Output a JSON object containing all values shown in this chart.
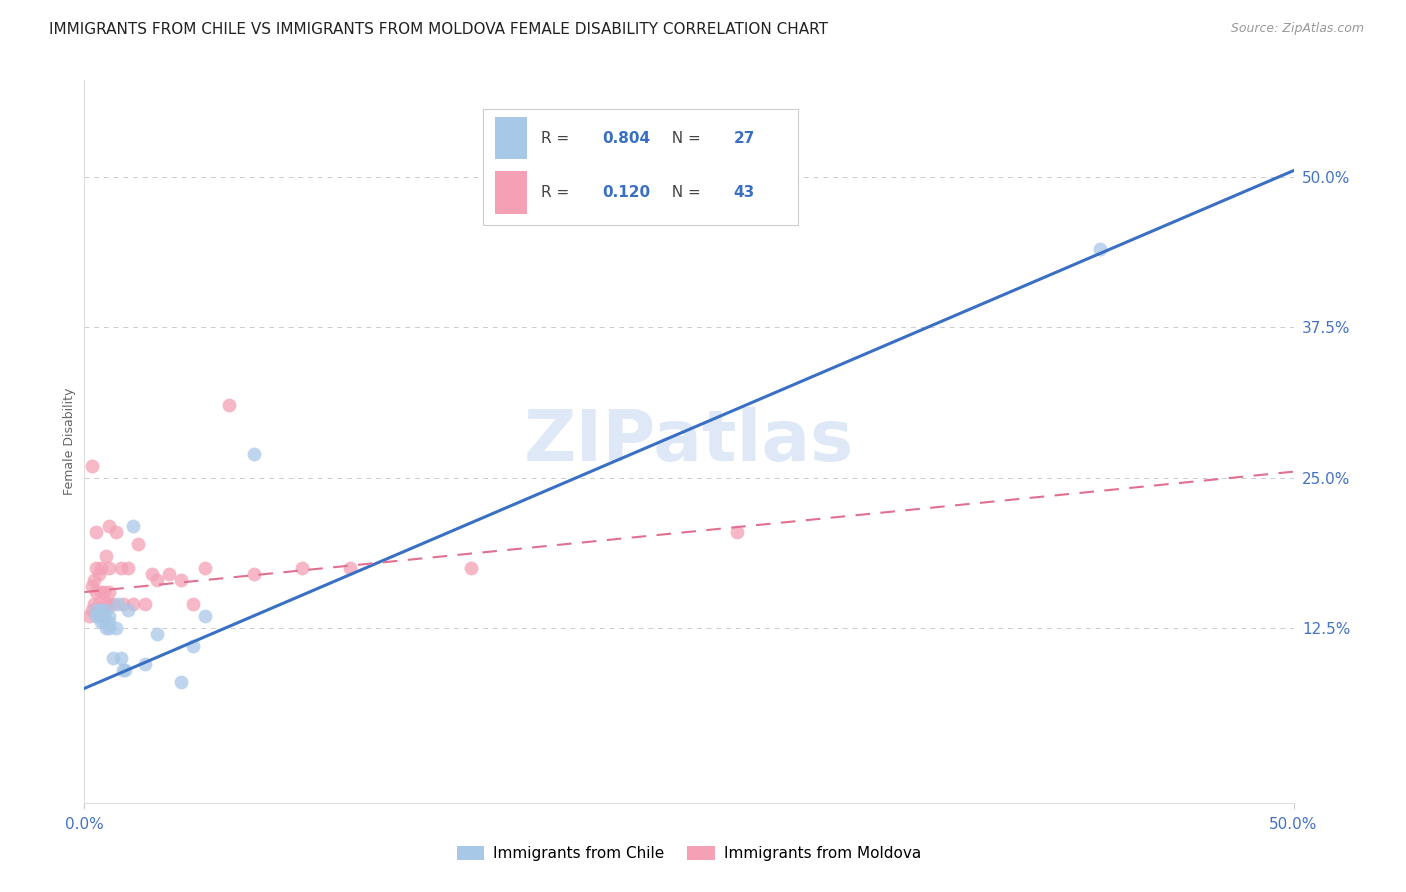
{
  "title": "IMMIGRANTS FROM CHILE VS IMMIGRANTS FROM MOLDOVA FEMALE DISABILITY CORRELATION CHART",
  "source": "Source: ZipAtlas.com",
  "ylabel": "Female Disability",
  "xlim": [
    0.0,
    0.5
  ],
  "ylim": [
    -0.02,
    0.58
  ],
  "yticks": [
    0.0,
    0.125,
    0.25,
    0.375,
    0.5
  ],
  "chile_color": "#a8c8e8",
  "moldova_color": "#f4a0b5",
  "chile_line_color": "#3a70c4",
  "moldova_line_color": "#e07090",
  "right_tick_color": "#4472c4",
  "bottom_tick_color": "#4472c4",
  "grid_color": "#cccccc",
  "background_color": "#ffffff",
  "watermark": "ZIPatlas",
  "watermark_color": "#c8daf0",
  "chile_R": "0.804",
  "chile_N": "27",
  "moldova_R": "0.120",
  "moldova_N": "43",
  "chile_scatter_x": [
    0.005,
    0.005,
    0.006,
    0.007,
    0.007,
    0.008,
    0.008,
    0.009,
    0.009,
    0.01,
    0.01,
    0.01,
    0.012,
    0.013,
    0.014,
    0.015,
    0.016,
    0.017,
    0.018,
    0.02,
    0.025,
    0.03,
    0.04,
    0.045,
    0.05,
    0.07,
    0.42
  ],
  "chile_scatter_y": [
    0.135,
    0.14,
    0.135,
    0.13,
    0.14,
    0.13,
    0.135,
    0.125,
    0.14,
    0.125,
    0.13,
    0.135,
    0.1,
    0.125,
    0.145,
    0.1,
    0.09,
    0.09,
    0.14,
    0.21,
    0.095,
    0.12,
    0.08,
    0.11,
    0.135,
    0.27,
    0.44
  ],
  "moldova_scatter_x": [
    0.002,
    0.003,
    0.003,
    0.003,
    0.004,
    0.004,
    0.005,
    0.005,
    0.005,
    0.005,
    0.006,
    0.006,
    0.007,
    0.007,
    0.007,
    0.008,
    0.008,
    0.009,
    0.009,
    0.01,
    0.01,
    0.01,
    0.01,
    0.012,
    0.013,
    0.015,
    0.016,
    0.018,
    0.02,
    0.022,
    0.025,
    0.028,
    0.03,
    0.035,
    0.04,
    0.045,
    0.05,
    0.06,
    0.07,
    0.09,
    0.11,
    0.16,
    0.27
  ],
  "moldova_scatter_y": [
    0.135,
    0.14,
    0.16,
    0.26,
    0.145,
    0.165,
    0.14,
    0.155,
    0.175,
    0.205,
    0.145,
    0.17,
    0.135,
    0.155,
    0.175,
    0.135,
    0.155,
    0.145,
    0.185,
    0.145,
    0.155,
    0.175,
    0.21,
    0.145,
    0.205,
    0.175,
    0.145,
    0.175,
    0.145,
    0.195,
    0.145,
    0.17,
    0.165,
    0.17,
    0.165,
    0.145,
    0.175,
    0.31,
    0.17,
    0.175,
    0.175,
    0.175,
    0.205
  ],
  "chile_line_x": [
    0.0,
    0.5
  ],
  "chile_line_y": [
    0.075,
    0.505
  ],
  "moldova_line_x": [
    0.0,
    0.5
  ],
  "moldova_line_y": [
    0.155,
    0.255
  ],
  "title_fontsize": 11,
  "source_fontsize": 9,
  "axis_label_fontsize": 9,
  "tick_fontsize": 11,
  "legend_fontsize": 11,
  "watermark_fontsize": 52
}
